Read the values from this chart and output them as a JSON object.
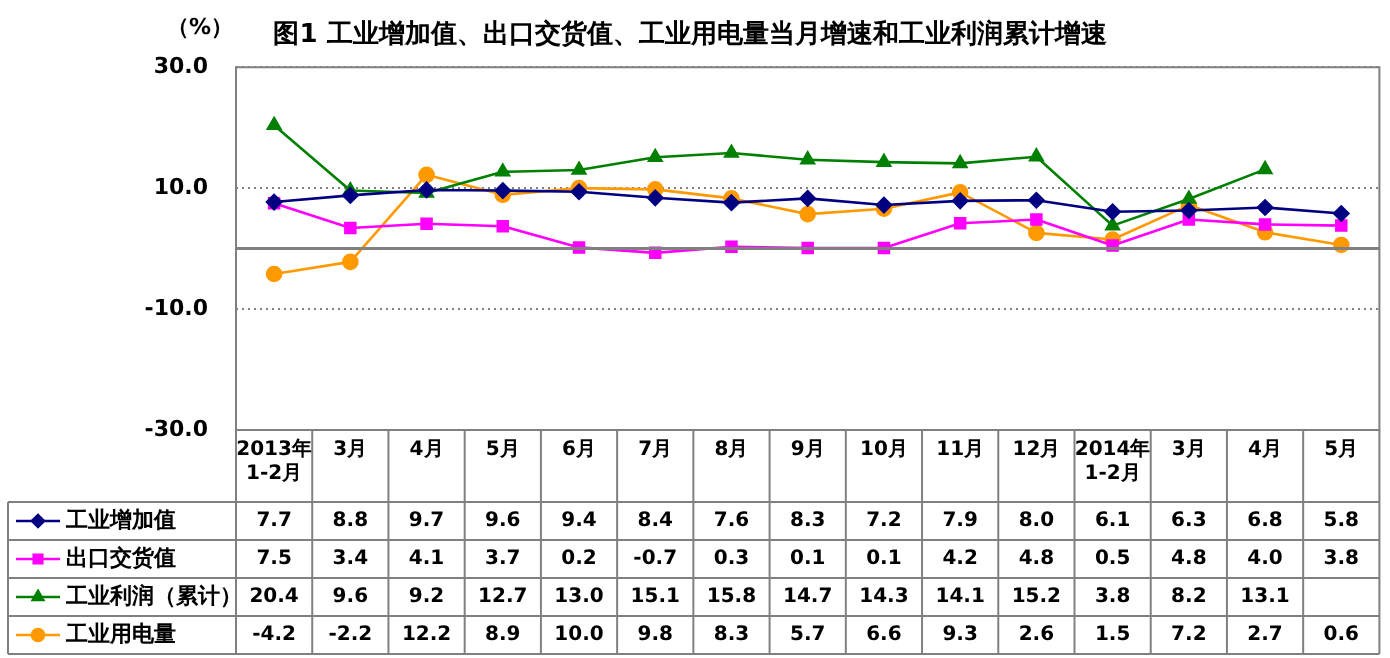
{
  "chart_data": {
    "type": "line",
    "title": "图1 工业增加值、出口交货值、工业用电量当月增速和工业利润累计增速",
    "ylabel": "（%）",
    "categories": [
      "2013年\n1-2月",
      "3月",
      "4月",
      "5月",
      "6月",
      "7月",
      "8月",
      "9月",
      "10月",
      "11月",
      "12月",
      "2014年\n1-2月",
      "3月",
      "4月",
      "5月"
    ],
    "series": [
      {
        "name": "工业增加值",
        "color": "#000080",
        "marker": "diamond",
        "values": [
          7.7,
          8.8,
          9.7,
          9.6,
          9.4,
          8.4,
          7.6,
          8.3,
          7.2,
          7.9,
          8.0,
          6.1,
          6.3,
          6.8,
          5.8
        ],
        "value_labels": [
          "7.7",
          "8.8",
          "9.7",
          "9.6",
          "9.4",
          "8.4",
          "7.6",
          "8.3",
          "7.2",
          "7.9",
          "8.0",
          "6.1",
          "6.3",
          "6.8",
          "5.8"
        ]
      },
      {
        "name": "出口交货值",
        "color": "#ff00ff",
        "marker": "square",
        "values": [
          7.5,
          3.4,
          4.1,
          3.7,
          0.2,
          -0.7,
          0.3,
          0.1,
          0.1,
          4.2,
          4.8,
          0.5,
          4.8,
          4.0,
          3.8
        ],
        "value_labels": [
          "7.5",
          "3.4",
          "4.1",
          "3.7",
          "0.2",
          "-0.7",
          "0.3",
          "0.1",
          "0.1",
          "4.2",
          "4.8",
          "0.5",
          "4.8",
          "4.0",
          "3.8"
        ]
      },
      {
        "name": "工业利润（累计）",
        "color": "#008000",
        "marker": "triangle",
        "values": [
          20.4,
          9.6,
          9.2,
          12.7,
          13.0,
          15.1,
          15.8,
          14.7,
          14.3,
          14.1,
          15.2,
          3.8,
          8.2,
          13.1,
          null
        ],
        "value_labels": [
          "20.4",
          "9.6",
          "9.2",
          "12.7",
          "13.0",
          "15.1",
          "15.8",
          "14.7",
          "14.3",
          "14.1",
          "15.2",
          "3.8",
          "8.2",
          "13.1",
          null
        ]
      },
      {
        "name": "工业用电量",
        "color": "#ff9900",
        "marker": "circle",
        "values": [
          -4.2,
          -2.2,
          12.2,
          8.9,
          10.0,
          9.8,
          8.3,
          5.7,
          6.6,
          9.3,
          2.6,
          1.5,
          7.2,
          2.7,
          0.6
        ],
        "value_labels": [
          "-4.2",
          "-2.2",
          "12.2",
          "8.9",
          "10.0",
          "9.8",
          "8.3",
          "5.7",
          "6.6",
          "9.3",
          "2.6",
          "1.5",
          "7.2",
          "2.7",
          "0.6"
        ]
      }
    ],
    "ylim": [
      -30,
      30
    ],
    "yticks": [
      {
        "value": 30,
        "label": "30.0"
      },
      {
        "value": 10,
        "label": "10.0"
      },
      {
        "value": -10,
        "label": "-10.0"
      },
      {
        "value": -30,
        "label": "-30.0"
      }
    ],
    "grid": "y",
    "ref_lines": [
      {
        "axis": "y",
        "value": 0,
        "color": "#808080"
      }
    ],
    "legend": "bottom"
  }
}
